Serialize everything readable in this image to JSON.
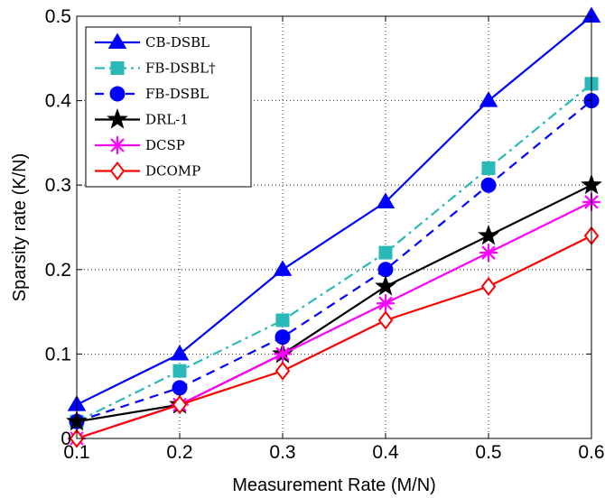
{
  "chart_data": {
    "type": "line",
    "title": "",
    "xlabel": "Measurement Rate (M/N)",
    "ylabel": "Sparsity rate (K/N)",
    "xlim": [
      0.1,
      0.6
    ],
    "ylim": [
      0,
      0.5
    ],
    "xticks": [
      "0.1",
      "0.2",
      "0.3",
      "0.4",
      "0.5",
      "0.6"
    ],
    "yticks": [
      "0",
      "0.1",
      "0.2",
      "0.3",
      "0.4",
      "0.5"
    ],
    "grid": true,
    "legend_position": "top-left",
    "x": [
      0.1,
      0.2,
      0.3,
      0.4,
      0.5,
      0.6
    ],
    "series": [
      {
        "name": "CB-DSBL",
        "values": [
          0.04,
          0.1,
          0.2,
          0.28,
          0.4,
          0.5
        ],
        "color": "#0000ff",
        "marker": "triangle",
        "dash": "solid"
      },
      {
        "name": "FB-DSBL†",
        "values": [
          0.02,
          0.08,
          0.14,
          0.22,
          0.32,
          0.42
        ],
        "color": "#2ab8b8",
        "marker": "square",
        "dash": "dashdot"
      },
      {
        "name": "FB-DSBL",
        "values": [
          0.02,
          0.06,
          0.12,
          0.2,
          0.3,
          0.4
        ],
        "color": "#0000ff",
        "marker": "circle",
        "dash": "dashed"
      },
      {
        "name": "DRL-1",
        "values": [
          0.02,
          0.04,
          0.1,
          0.18,
          0.24,
          0.3
        ],
        "color": "#000000",
        "marker": "star",
        "dash": "solid"
      },
      {
        "name": "DCSP",
        "values": [
          0.0,
          0.04,
          0.1,
          0.16,
          0.22,
          0.28
        ],
        "color": "#ff00ff",
        "marker": "asterisk",
        "dash": "solid"
      },
      {
        "name": "DCOMP",
        "values": [
          0.0,
          0.04,
          0.08,
          0.14,
          0.18,
          0.24
        ],
        "color": "#ff0000",
        "marker": "diamond",
        "dash": "solid"
      }
    ]
  }
}
